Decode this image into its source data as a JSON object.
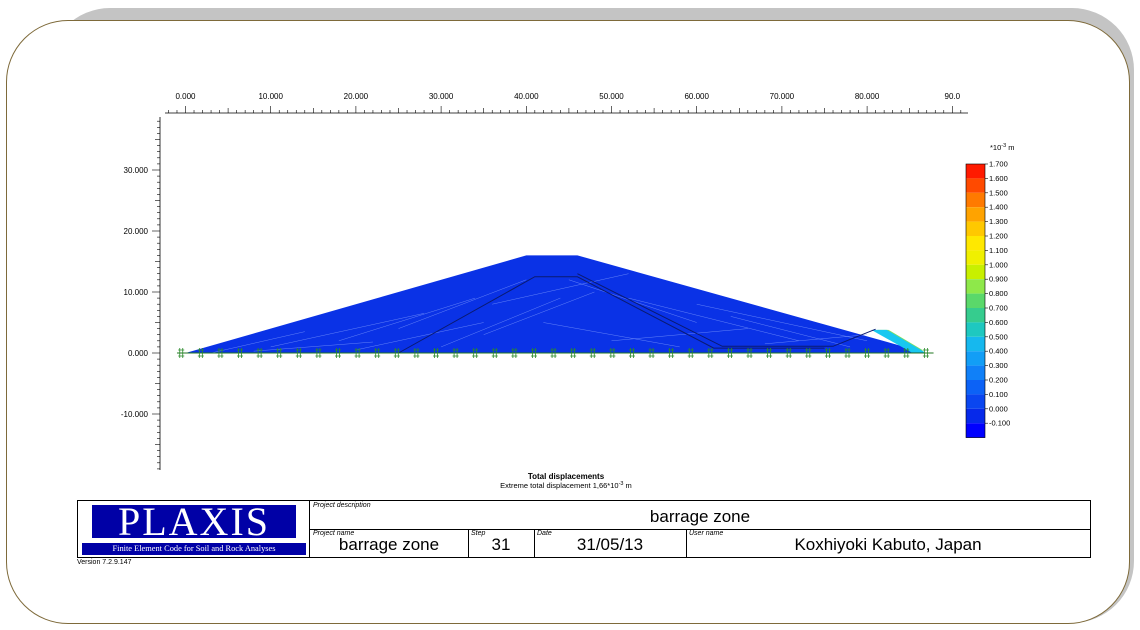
{
  "plot": {
    "x_ticks": [
      "0.000",
      "10.000",
      "20.000",
      "30.000",
      "40.000",
      "50.000",
      "60.000",
      "70.000",
      "80.000",
      "90.0"
    ],
    "y_ticks": [
      "30.000",
      "20.000",
      "10.000",
      "0.000",
      "-10.000"
    ],
    "legend_unit_prefix": "*10",
    "legend_unit_exp": "-3",
    "legend_unit_suffix": " m",
    "legend_levels": [
      "1.700",
      "1.600",
      "1.500",
      "1.400",
      "1.300",
      "1.200",
      "1.100",
      "1.000",
      "0.900",
      "0.800",
      "0.700",
      "0.600",
      "0.500",
      "0.400",
      "0.300",
      "0.200",
      "0.100",
      "0.000",
      "-0.100"
    ],
    "legend_colors": [
      "#ff1a00",
      "#ff4a00",
      "#ff7a00",
      "#ffa300",
      "#ffc800",
      "#ffe800",
      "#f0f000",
      "#c8f000",
      "#8ee84a",
      "#5ad86a",
      "#36cc8e",
      "#1ec8c0",
      "#16b8ee",
      "#129ef6",
      "#1080f8",
      "#0c62f6",
      "#0a46f0",
      "#0629ea",
      "#0000ff"
    ],
    "caption_title": "Total displacements",
    "caption_text_prefix": "Extreme total displacement 1,66*10",
    "caption_text_exp": "-3",
    "caption_text_suffix": " m",
    "dam_color": "#0a32e6",
    "hot_zone_colors": [
      "#ff2a00",
      "#ff9a00",
      "#ffe000",
      "#7de060",
      "#18c8f0"
    ]
  },
  "title_block": {
    "logo_text": "PLAXIS",
    "logo_subtitle": "Finite Element Code for Soil and Rock Analyses",
    "project_description_label": "Project description",
    "project_description": "barrage zone",
    "project_name_label": "Project name",
    "project_name": "barrage zone",
    "step_label": "Step",
    "step": "31",
    "date_label": "Date",
    "date": "31/05/13",
    "user_name_label": "User name",
    "user_name": "Koxhiyoki Kabuto, Japan",
    "version": "Version 7.2.9.147"
  }
}
